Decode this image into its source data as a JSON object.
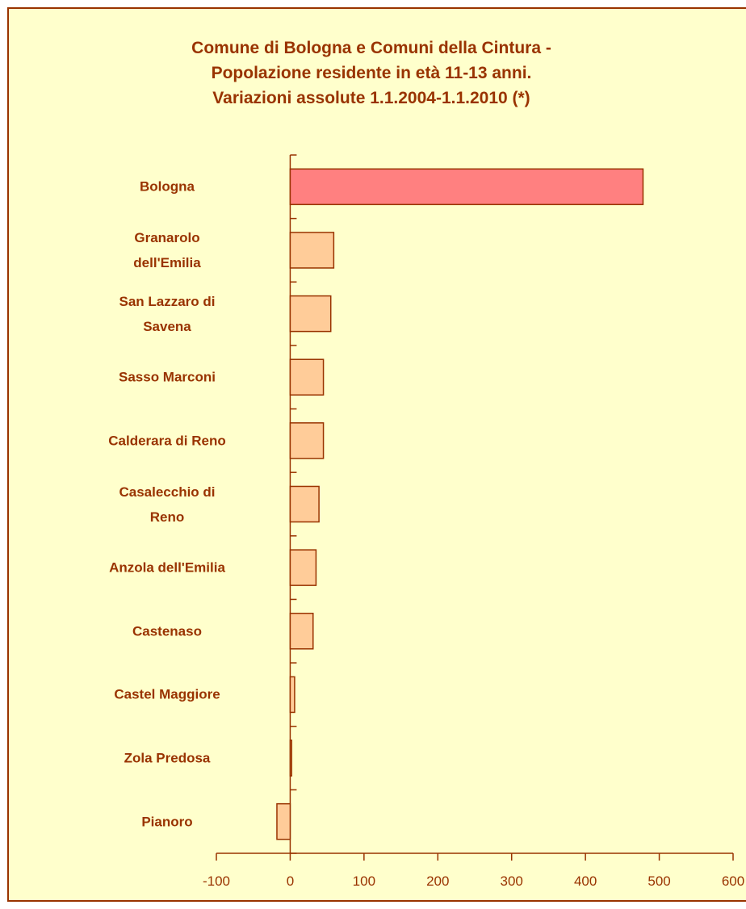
{
  "chart_data": {
    "type": "barh",
    "title": "Comune di Bologna e Comuni della Cintura -\nPopolazione residente in età 11-13 anni.\nVariazioni assolute 1.1.2004-1.1.2010 (*)",
    "categories": [
      "Bologna",
      "Granarolo\ndell'Emilia",
      "San Lazzaro di\nSavena",
      "Sasso Marconi",
      "Calderara di Reno",
      "Casalecchio di\nReno",
      "Anzola dell'Emilia",
      "Castenaso",
      "Castel Maggiore",
      "Zola Predosa",
      "Pianoro"
    ],
    "values": [
      478,
      59,
      55,
      45,
      45,
      39,
      35,
      31,
      6,
      2,
      -18
    ],
    "colors": [
      "#ff8080",
      "#ffcc99",
      "#ffcc99",
      "#ffcc99",
      "#ffcc99",
      "#ffcc99",
      "#ffcc99",
      "#ffcc99",
      "#ffcc99",
      "#ffcc99",
      "#ffcc99"
    ],
    "xlim": [
      -100,
      600
    ],
    "xticks": [
      -100,
      0,
      100,
      200,
      300,
      400,
      500,
      600
    ]
  }
}
